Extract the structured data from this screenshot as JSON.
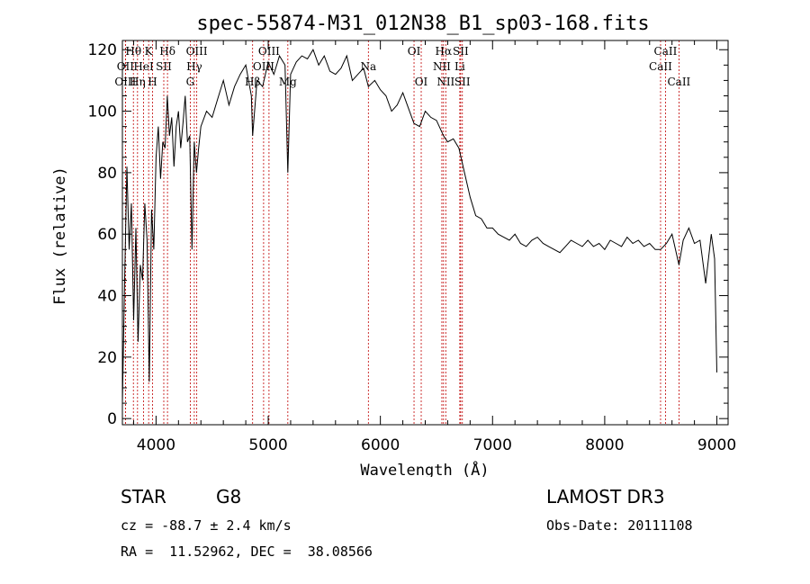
{
  "chart_data": {
    "type": "line",
    "title": "spec-55874-M31_012N38_B1_sp03-168.fits",
    "xlabel": "Wavelength (Å)",
    "ylabel": "Flux (relative)",
    "xlim": [
      3700,
      9100
    ],
    "ylim": [
      -2,
      123
    ],
    "x_ticks": [
      4000,
      5000,
      6000,
      7000,
      8000,
      9000
    ],
    "y_ticks": [
      0,
      20,
      40,
      60,
      80,
      100,
      120
    ],
    "series": [
      {
        "name": "spectrum",
        "x": [
          3700,
          3720,
          3740,
          3760,
          3780,
          3800,
          3820,
          3840,
          3860,
          3880,
          3900,
          3920,
          3940,
          3960,
          3980,
          4000,
          4020,
          4040,
          4060,
          4080,
          4100,
          4120,
          4140,
          4160,
          4180,
          4200,
          4220,
          4240,
          4260,
          4280,
          4300,
          4320,
          4340,
          4360,
          4380,
          4400,
          4450,
          4500,
          4550,
          4600,
          4650,
          4700,
          4750,
          4800,
          4850,
          4861,
          4900,
          4950,
          5000,
          5050,
          5100,
          5150,
          5175,
          5200,
          5250,
          5300,
          5350,
          5400,
          5450,
          5500,
          5550,
          5600,
          5650,
          5700,
          5750,
          5800,
          5850,
          5893,
          5950,
          6000,
          6050,
          6100,
          6150,
          6200,
          6250,
          6300,
          6350,
          6400,
          6450,
          6500,
          6563,
          6600,
          6650,
          6700,
          6750,
          6800,
          6850,
          6900,
          6950,
          7000,
          7050,
          7100,
          7150,
          7200,
          7250,
          7300,
          7350,
          7400,
          7450,
          7500,
          7550,
          7600,
          7650,
          7700,
          7750,
          7800,
          7850,
          7900,
          7950,
          8000,
          8050,
          8100,
          8150,
          8200,
          8250,
          8300,
          8350,
          8400,
          8450,
          8498,
          8550,
          8600,
          8662,
          8700,
          8750,
          8800,
          8850,
          8900,
          8950,
          8980,
          9000
        ],
        "values": [
          5,
          45,
          82,
          55,
          70,
          32,
          62,
          25,
          50,
          45,
          70,
          58,
          12,
          68,
          55,
          85,
          95,
          78,
          90,
          88,
          105,
          92,
          98,
          82,
          95,
          100,
          88,
          96,
          105,
          90,
          92,
          55,
          90,
          80,
          88,
          95,
          100,
          98,
          104,
          110,
          102,
          108,
          112,
          115,
          105,
          92,
          110,
          108,
          116,
          112,
          118,
          115,
          80,
          112,
          116,
          118,
          117,
          120,
          115,
          118,
          113,
          112,
          114,
          118,
          110,
          112,
          114,
          108,
          110,
          107,
          105,
          100,
          102,
          106,
          101,
          96,
          95,
          100,
          98,
          97,
          92,
          90,
          91,
          88,
          80,
          72,
          66,
          65,
          62,
          62,
          60,
          59,
          58,
          60,
          57,
          56,
          58,
          59,
          57,
          56,
          55,
          54,
          56,
          58,
          57,
          56,
          58,
          56,
          57,
          55,
          58,
          57,
          56,
          59,
          57,
          58,
          56,
          57,
          55,
          55,
          57,
          60,
          50,
          58,
          62,
          57,
          58,
          44,
          60,
          52,
          15
        ]
      }
    ],
    "line_markers": [
      {
        "label": "Hθ",
        "x": 3798,
        "row": 1
      },
      {
        "label": "OII",
        "x": 3727,
        "row": 2
      },
      {
        "label": "OIII",
        "x": 3727,
        "row": 3
      },
      {
        "label": "K",
        "x": 3934,
        "row": 1
      },
      {
        "label": "H",
        "x": 3969,
        "row": 3
      },
      {
        "label": "HeI",
        "x": 3889,
        "row": 2
      },
      {
        "label": "Hη",
        "x": 3835,
        "row": 3
      },
      {
        "label": "SII",
        "x": 4069,
        "row": 2
      },
      {
        "label": "Hδ",
        "x": 4102,
        "row": 1
      },
      {
        "label": "OIII",
        "x": 4363,
        "row": 1
      },
      {
        "label": "Hγ",
        "x": 4341,
        "row": 2
      },
      {
        "label": "G",
        "x": 4305,
        "row": 3
      },
      {
        "label": "OIII",
        "x": 5007,
        "row": 1
      },
      {
        "label": "OIII",
        "x": 4959,
        "row": 2
      },
      {
        "label": "Hβ",
        "x": 4861,
        "row": 3
      },
      {
        "label": "Mg",
        "x": 5175,
        "row": 3
      },
      {
        "label": "Na",
        "x": 5893,
        "row": 2
      },
      {
        "label": "OI",
        "x": 6300,
        "row": 1
      },
      {
        "label": "OI",
        "x": 6364,
        "row": 3
      },
      {
        "label": "Hα",
        "x": 6563,
        "row": 1
      },
      {
        "label": "SII",
        "x": 6716,
        "row": 1
      },
      {
        "label": "NII",
        "x": 6548,
        "row": 2
      },
      {
        "label": "Li",
        "x": 6708,
        "row": 2
      },
      {
        "label": "NII",
        "x": 6583,
        "row": 3
      },
      {
        "label": "SII",
        "x": 6731,
        "row": 3
      },
      {
        "label": "CaII",
        "x": 8542,
        "row": 1
      },
      {
        "label": "CaII",
        "x": 8498,
        "row": 2
      },
      {
        "label": "CaII",
        "x": 8662,
        "row": 3
      }
    ],
    "colors": {
      "line": "#000000",
      "marker": "#c00000"
    }
  },
  "info": {
    "class": "STAR",
    "subclass": "G8",
    "survey": "LAMOST DR3",
    "cz": "cz = -88.7 ± 2.4 km/s",
    "obs_date": "Obs-Date: 20111108",
    "radec": "RA =  11.52962, DEC =  38.08566"
  }
}
